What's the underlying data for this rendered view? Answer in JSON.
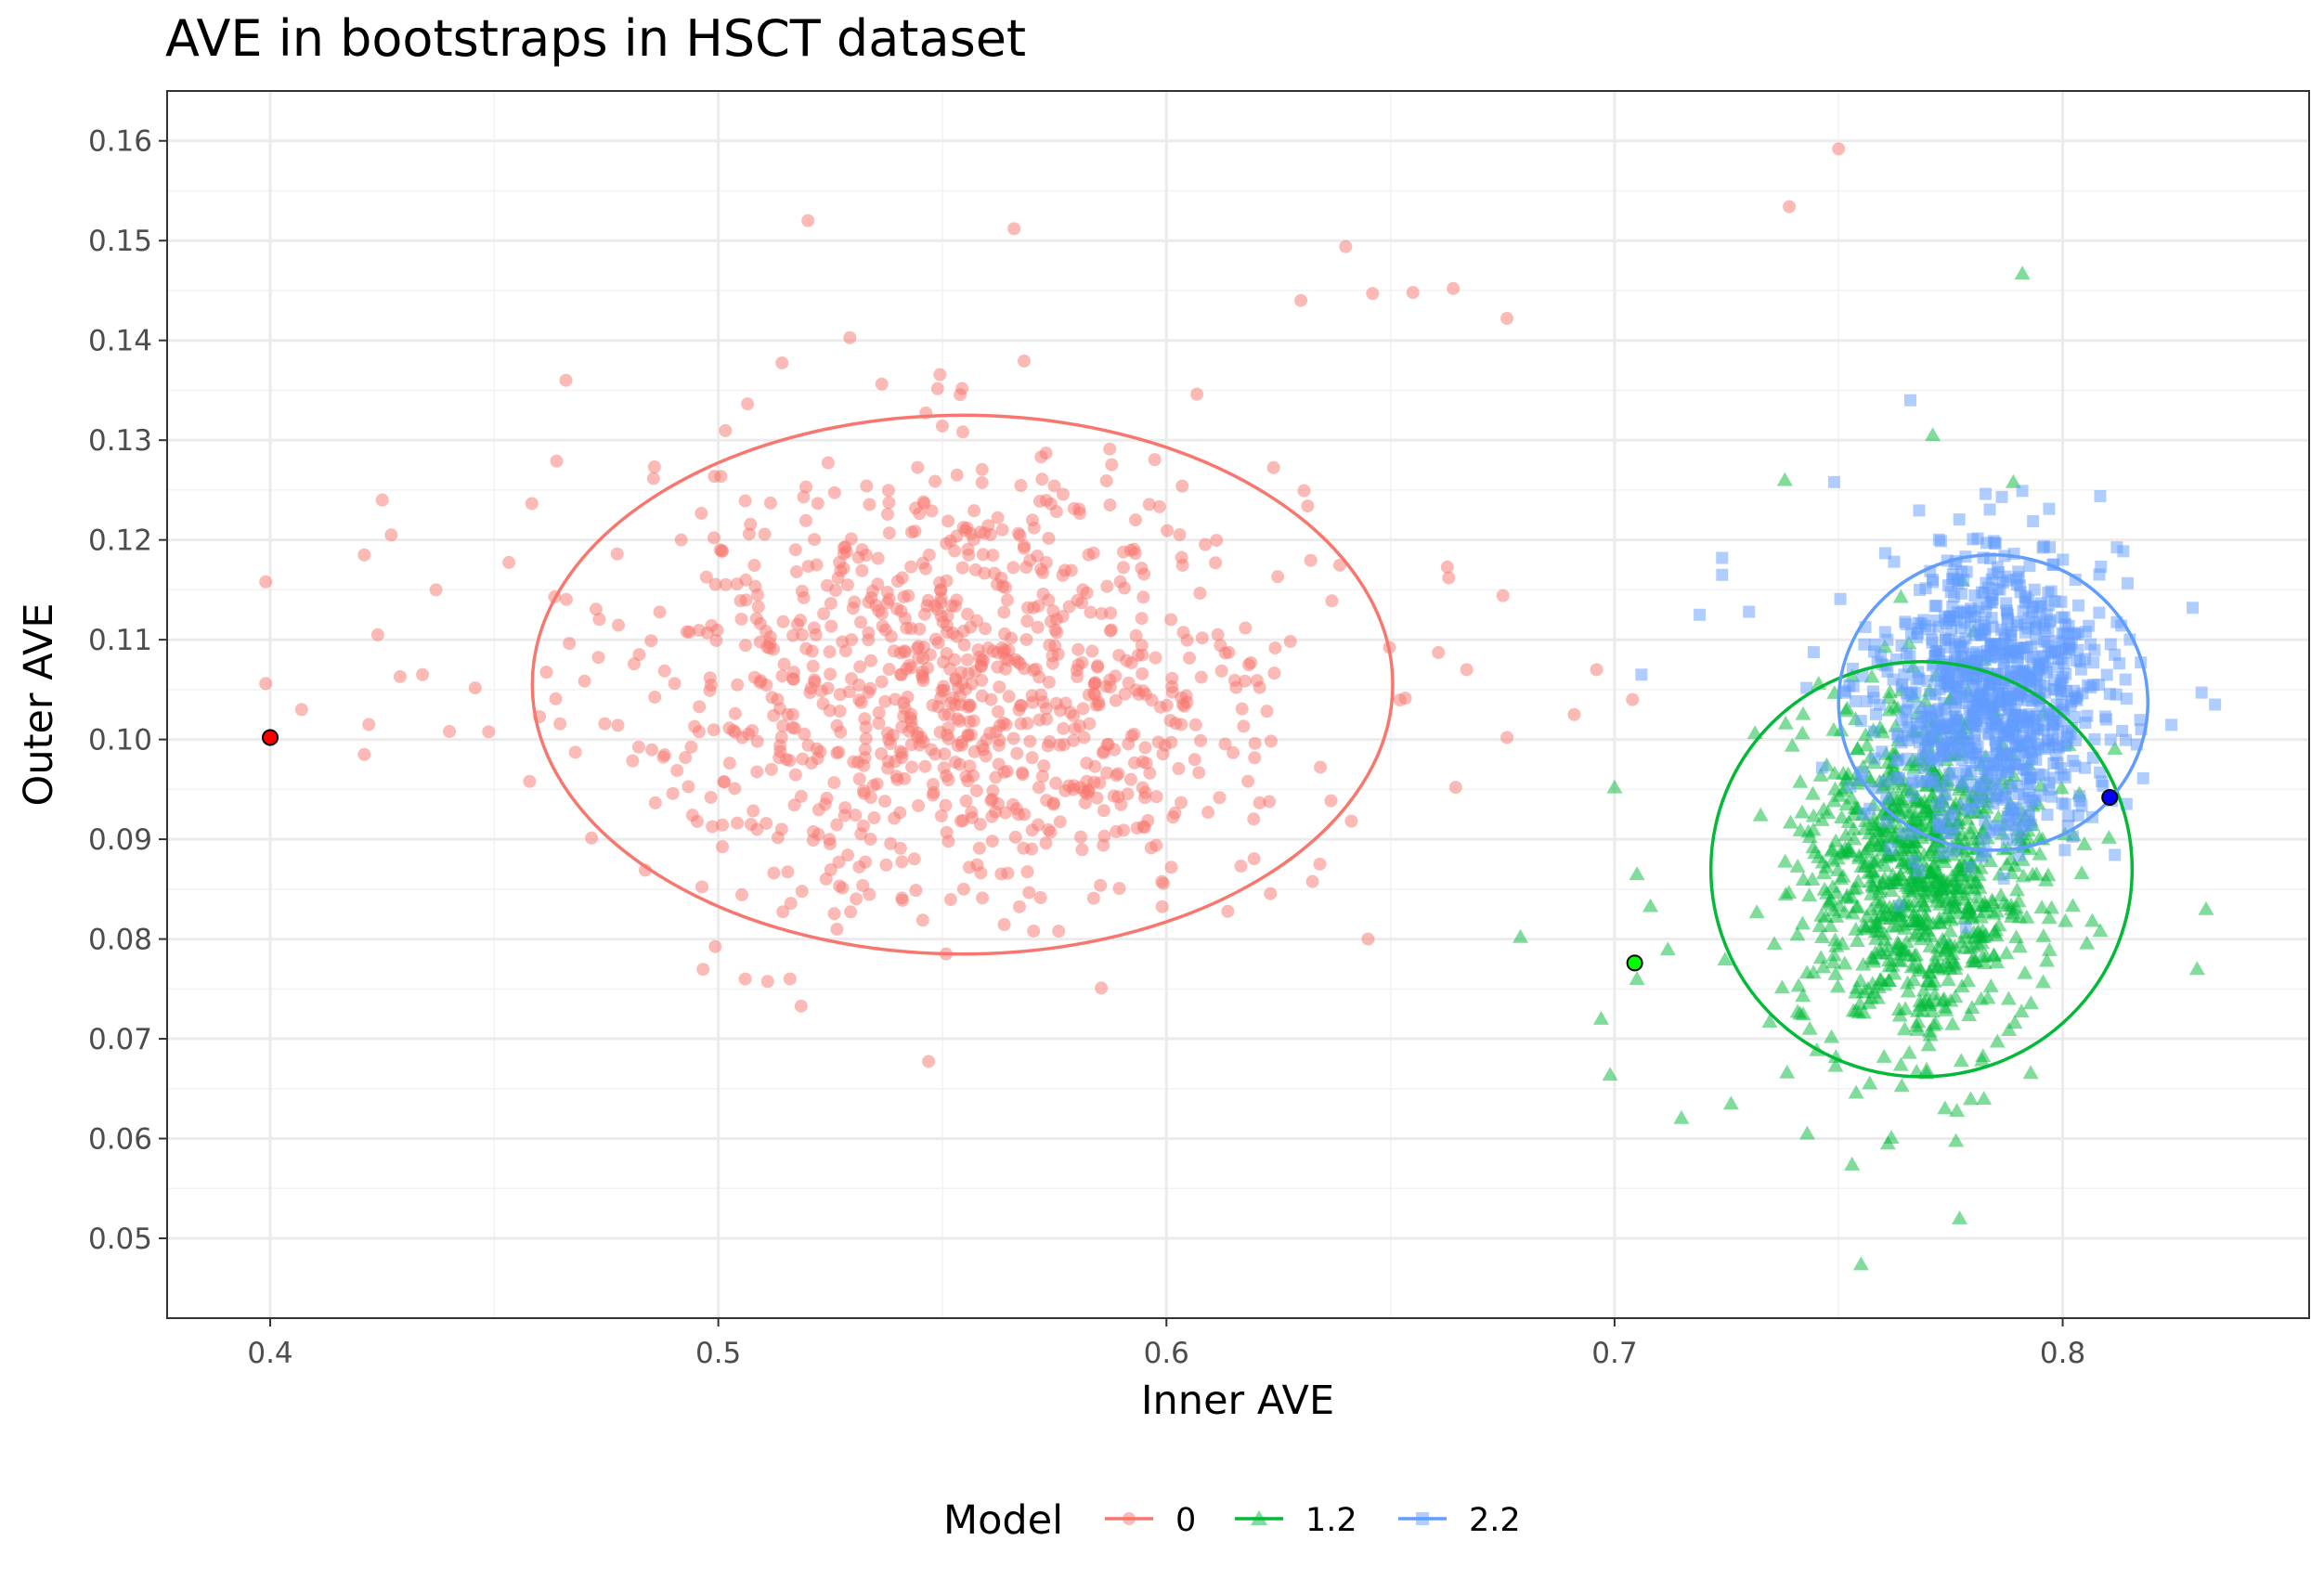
{
  "chart_data": {
    "type": "scatter",
    "title": "AVE in bootstraps in HSCT dataset",
    "xlabel": "Inner AVE",
    "ylabel": "Outer AVE",
    "xlim": [
      0.377,
      0.855
    ],
    "ylim": [
      0.042,
      0.165
    ],
    "x_ticks": [
      0.4,
      0.5,
      0.6,
      0.7,
      0.8
    ],
    "x_tick_labels": [
      "0.4",
      "0.5",
      "0.6",
      "0.7",
      "0.8"
    ],
    "y_ticks": [
      0.05,
      0.06,
      0.07,
      0.08,
      0.09,
      0.1,
      0.11,
      0.12,
      0.13,
      0.14,
      0.15,
      0.16
    ],
    "y_tick_labels": [
      "0.05",
      "0.06",
      "0.07",
      "0.08",
      "0.09",
      "0.10",
      "0.11",
      "0.12",
      "0.13",
      "0.14",
      "0.15",
      "0.16"
    ],
    "grid": true,
    "legend_position": "bottom",
    "legend_title": "Model",
    "series": [
      {
        "name": "0",
        "color": "#F8766D",
        "marker": "circle",
        "bootstrap_count": 950,
        "center": [
          0.5545,
          0.1055
        ],
        "spread": [
          0.052,
          0.0115
        ],
        "ellipse": {
          "center": [
            0.5545,
            0.1055
          ],
          "radius_x": 0.096,
          "radius_y": 0.027
        },
        "original_point": [
          0.4,
          0.1002
        ],
        "original_point_color": "#ff0000",
        "outliers": [
          [
            0.399,
            0.1158
          ],
          [
            0.399,
            0.1056
          ],
          [
            0.407,
            0.103
          ],
          [
            0.421,
            0.1185
          ],
          [
            0.422,
            0.1015
          ],
          [
            0.421,
            0.0985
          ],
          [
            0.425,
            0.124
          ],
          [
            0.427,
            0.1205
          ],
          [
            0.424,
            0.1105
          ],
          [
            0.429,
            0.1063
          ],
          [
            0.434,
            0.1065
          ],
          [
            0.437,
            0.115
          ],
          [
            0.44,
            0.1008
          ],
          [
            0.52,
            0.152
          ],
          [
            0.566,
            0.1512
          ],
          [
            0.64,
            0.1494
          ],
          [
            0.664,
            0.1452
          ],
          [
            0.676,
            0.1422
          ],
          [
            0.63,
            0.144
          ],
          [
            0.655,
            0.1448
          ],
          [
            0.646,
            0.1447
          ],
          [
            0.506,
            0.076
          ],
          [
            0.516,
            0.076
          ],
          [
            0.645,
            0.08
          ],
          [
            0.691,
            0.1025
          ],
          [
            0.696,
            0.107
          ],
          [
            0.704,
            0.104
          ],
          [
            0.667,
            0.107
          ],
          [
            0.676,
            0.1002
          ],
          [
            0.663,
            0.1162
          ],
          [
            0.466,
            0.136
          ]
        ]
      },
      {
        "name": "1.2",
        "color": "#00BA38",
        "marker": "triangle",
        "bootstrap_count": 950,
        "center": [
          0.7685,
          0.0867
        ],
        "spread": [
          0.019,
          0.0088
        ],
        "ellipse": {
          "center": [
            0.7685,
            0.087
          ],
          "radius_x": 0.047,
          "radius_y": 0.0208
        },
        "original_point": [
          0.7045,
          0.0776
        ],
        "original_point_color": "#00ff00",
        "outliers": [
          [
            0.791,
            0.1467
          ],
          [
            0.679,
            0.0802
          ],
          [
            0.697,
            0.072
          ],
          [
            0.699,
            0.0664
          ],
          [
            0.7,
            0.0952
          ],
          [
            0.705,
            0.0865
          ],
          [
            0.705,
            0.076
          ],
          [
            0.708,
            0.0833
          ],
          [
            0.755,
            0.0474
          ],
          [
            0.777,
            0.052
          ],
          [
            0.761,
            0.0595
          ],
          [
            0.753,
            0.0574
          ],
          [
            0.743,
            0.0605
          ],
          [
            0.738,
            0.126
          ],
          [
            0.771,
            0.1305
          ],
          [
            0.789,
            0.1258
          ],
          [
            0.832,
            0.083
          ],
          [
            0.83,
            0.077
          ],
          [
            0.726,
            0.0635
          ]
        ]
      },
      {
        "name": "2.2",
        "color": "#619CFF",
        "marker": "square",
        "bootstrap_count": 950,
        "center": [
          0.7845,
          0.1045
        ],
        "spread": [
          0.0175,
          0.0072
        ],
        "ellipse": {
          "center": [
            0.7845,
            0.1037
          ],
          "radius_x": 0.0345,
          "radius_y": 0.0148
        },
        "original_point": [
          0.8105,
          0.0942
        ],
        "original_point_color": "#0000ff",
        "outliers": [
          [
            0.766,
            0.134
          ],
          [
            0.749,
            0.1258
          ],
          [
            0.724,
            0.1182
          ],
          [
            0.724,
            0.1165
          ],
          [
            0.719,
            0.1125
          ],
          [
            0.73,
            0.1128
          ],
          [
            0.706,
            0.1065
          ],
          [
            0.834,
            0.1035
          ],
          [
            0.831,
            0.1047
          ],
          [
            0.829,
            0.1132
          ]
        ]
      }
    ],
    "extra_points": [
      {
        "series": "0",
        "x": 0.739,
        "y": 0.1534
      },
      {
        "series": "0",
        "x": 0.75,
        "y": 0.1592
      }
    ]
  }
}
